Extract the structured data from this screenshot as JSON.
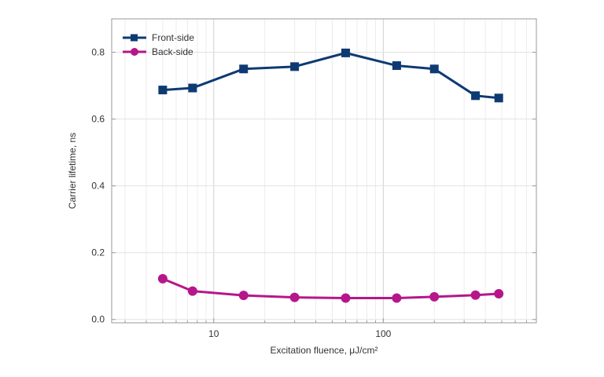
{
  "chart_data": {
    "type": "line",
    "title": "",
    "xlabel": "Excitation fluence, μJ/cm²",
    "ylabel": "Carrier lifetime, ns",
    "xscale": "log",
    "xlim": [
      2.5,
      800
    ],
    "ylim": [
      -0.01,
      0.9
    ],
    "xticks": [
      {
        "value": 10,
        "label": "10"
      },
      {
        "value": 100,
        "label": "100"
      }
    ],
    "yticks": [
      {
        "value": 0.0,
        "label": "0.0"
      },
      {
        "value": 0.2,
        "label": "0.2"
      },
      {
        "value": 0.4,
        "label": "0.4"
      },
      {
        "value": 0.6,
        "label": "0.6"
      },
      {
        "value": 0.8,
        "label": "0.8"
      }
    ],
    "grid": true,
    "legend": "top-left",
    "x": [
      5,
      7.5,
      15,
      30,
      60,
      120,
      200,
      350,
      480
    ],
    "series": [
      {
        "name": "Front-side",
        "marker": "square",
        "color": "#0e3a73",
        "values": [
          0.687,
          0.693,
          0.75,
          0.757,
          0.798,
          0.76,
          0.75,
          0.67,
          0.663
        ]
      },
      {
        "name": "Back-side",
        "marker": "circle",
        "color": "#b5178a",
        "values": [
          0.122,
          0.085,
          0.072,
          0.066,
          0.064,
          0.064,
          0.068,
          0.073,
          0.077
        ]
      }
    ]
  }
}
